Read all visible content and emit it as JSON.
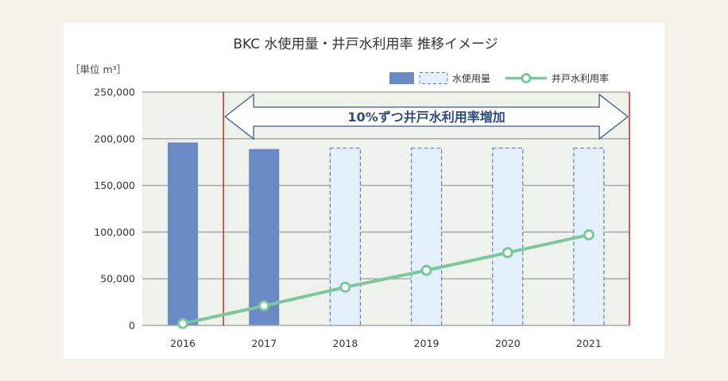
{
  "chart_data": {
    "type": "bar",
    "title": "BKC 水使用量・井戸水利用率 推移イメージ",
    "unit_label": "［単位 m³］",
    "categories": [
      "2016",
      "2017",
      "2018",
      "2019",
      "2020",
      "2021"
    ],
    "yticks": [
      "0",
      "50,000",
      "100,000",
      "150,000",
      "200,000",
      "250,000"
    ],
    "ylim": [
      0,
      250000
    ],
    "series": [
      {
        "name": "水使用量",
        "kind": "bar",
        "values": [
          196000,
          189000,
          190000,
          190000,
          190000,
          190000
        ],
        "styles": [
          "actual",
          "actual",
          "projected",
          "projected",
          "projected",
          "projected"
        ]
      },
      {
        "name": "井戸水利用率",
        "kind": "line",
        "values": [
          2000,
          21000,
          41000,
          59000,
          78000,
          97000
        ]
      }
    ],
    "annotation": {
      "text": "10%ずつ井戸水利用率増加",
      "from_category": "2017",
      "to_category": "2021"
    },
    "legend_position": "top-right",
    "grid": true,
    "colors": {
      "bar_actual": "#6a8ac6",
      "bar_projected_fill": "#e3f0fb",
      "bar_projected_stroke": "#5a80c0",
      "line": "#7cc79c",
      "plot_bg": "#eef2ea",
      "grid": "#a9a9a9",
      "marker_line": "#d0262e",
      "arrow_stroke": "#3f5a8e",
      "annotation_text": "#2f4a7c"
    }
  }
}
